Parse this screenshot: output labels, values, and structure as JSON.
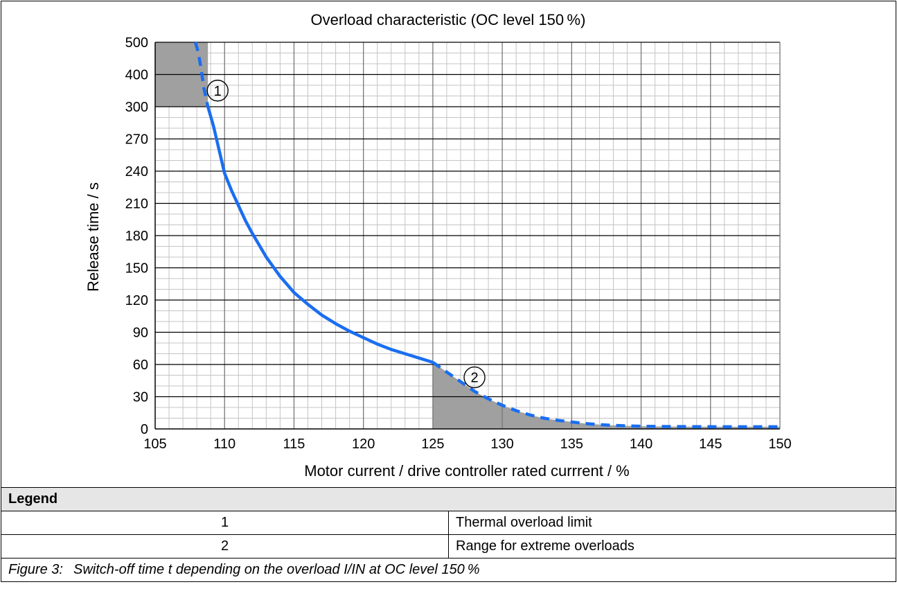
{
  "chart_data": {
    "type": "line",
    "title": "Overload characteristic (OC level 150 %)",
    "xlabel": "Motor current / drive controller rated currrent / %",
    "ylabel": "Release time / s",
    "xlim": [
      105,
      150
    ],
    "x_ticks": [
      "105",
      "110",
      "115",
      "120",
      "125",
      "130",
      "135",
      "140",
      "145",
      "150"
    ],
    "y_ticks": [
      "0",
      "30",
      "60",
      "90",
      "120",
      "150",
      "180",
      "210",
      "240",
      "270",
      "300",
      "400",
      "500"
    ],
    "y_scale": "piecewise: 0-300 linear in 30 s steps, 300-500 in 100 s steps",
    "grid": true,
    "colors": {
      "curve": "#1a6ef0",
      "shaded_region": "#a0a0a0"
    },
    "series": [
      {
        "style": "solid",
        "x": [
          108.8,
          109.2,
          109.6,
          110.0,
          110.5,
          111.0,
          111.5,
          112.0,
          113.0,
          114.0,
          115.0,
          116.0,
          117.0,
          118.0,
          119.0,
          120.0,
          121.0,
          122.0,
          123.0,
          124.0,
          125.0
        ],
        "y": [
          300,
          282,
          260,
          238,
          222,
          208,
          194,
          182,
          160,
          142,
          127,
          116,
          106,
          98,
          91,
          85,
          79,
          74,
          70,
          66,
          62
        ]
      },
      {
        "style": "dashed",
        "x": [
          107.9,
          108.1,
          108.3,
          108.5,
          108.8
        ],
        "y": [
          500,
          470,
          420,
          360,
          300
        ]
      },
      {
        "style": "dashed",
        "x": [
          125.0,
          126.0,
          127.0,
          128.0,
          129.0,
          130.0,
          131.0,
          132.0,
          133.0,
          134.0,
          135.0,
          136.0,
          137.0,
          138.0,
          139.0,
          140.0,
          141.0,
          142.0,
          144.0,
          146.0,
          148.0,
          150.0
        ],
        "y": [
          62,
          53,
          44,
          35,
          28,
          22,
          17,
          13,
          10,
          8,
          6.5,
          5,
          4,
          3.3,
          2.8,
          2.5,
          2.3,
          2.2,
          2.1,
          2.0,
          2.0,
          2.0
        ]
      }
    ],
    "regions": [
      {
        "x": [
          105,
          108.8
        ],
        "y_top": [
          500,
          500
        ],
        "y_bottom": [
          300,
          300
        ],
        "label": "1"
      },
      {
        "x_start": 125,
        "follows_series": 2,
        "label": "2"
      }
    ],
    "annotations": [
      {
        "text": "1",
        "x": 109.5,
        "y": 350
      },
      {
        "text": "2",
        "x": 128.0,
        "y": 48
      }
    ]
  },
  "legend": {
    "heading": "Legend",
    "items": [
      {
        "number": "1",
        "text": "Thermal overload limit"
      },
      {
        "number": "2",
        "text": "Range for extreme overloads"
      }
    ]
  },
  "caption": {
    "label": "Figure 3:",
    "text": "Switch-off time t depending on the overload I/IN at OC level 150 %"
  }
}
